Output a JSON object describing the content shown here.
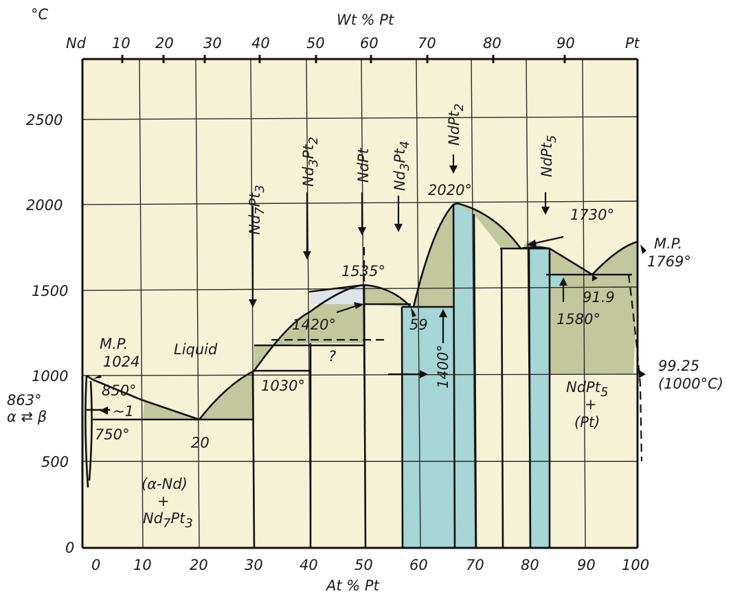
{
  "units": {
    "temperature": "°C",
    "top_axis": "Wt % Pt",
    "bottom_axis": "At % Pt"
  },
  "axes": {
    "left_element": "Nd",
    "right_element": "Pt",
    "bottom_ticks": [
      "0",
      "10",
      "20",
      "30",
      "40",
      "50",
      "60",
      "70",
      "80",
      "90",
      "100"
    ],
    "top_ticks": [
      "10",
      "20",
      "30",
      "40",
      "50",
      "60",
      "70",
      "80",
      "90"
    ],
    "y_ticks": [
      "0",
      "500",
      "1000",
      "1500",
      "2000",
      "2500"
    ]
  },
  "compounds": [
    {
      "base": "Nd",
      "s1": "7",
      "mid": "Pt",
      "s2": "3"
    },
    {
      "base": "Nd",
      "s1": "3",
      "mid": "Pt",
      "s2": "2"
    },
    {
      "base": "NdPt",
      "s1": "",
      "mid": "",
      "s2": ""
    },
    {
      "base": "Nd",
      "s1": "3",
      "mid": "Pt",
      "s2": "4"
    },
    {
      "base": "NdPt",
      "s1": "2",
      "mid": "",
      "s2": ""
    },
    {
      "base": "NdPt",
      "s1": "5",
      "mid": "",
      "s2": ""
    }
  ],
  "labels": {
    "mp_left": "M.P.",
    "mp_left_value": "1024",
    "t863": "863°",
    "alpha_beta": "α ⇄ β",
    "t850": "850°",
    "approx1": "~1",
    "t750": "750°",
    "liquid": "Liquid",
    "c20": "20",
    "t1030": "1030°",
    "t1420": "1420°",
    "question": "?",
    "t1535": "1535°",
    "c59": "59",
    "t1400": "1400°",
    "t2020": "2020°",
    "t1730": "1730°",
    "mp_right": "M.P.",
    "mp_right_value": "1769°",
    "c91_9": "91.9",
    "t1580": "1580°",
    "c99_25": "99.25",
    "t1000c": "(1000°C)",
    "ndpt5_region": "NdPt",
    "ndpt5_sub": "5",
    "plus": "+",
    "pt_region": "(Pt)",
    "alpha_nd": "(α-Nd)",
    "nd7pt3_base": "Nd",
    "nd7pt3_s1": "7",
    "nd7pt3_mid": "Pt",
    "nd7pt3_s2": "3"
  },
  "colors": {
    "background": "#f6f2d6",
    "two_phase": "#c3c79d",
    "compound": "#a6d6d6",
    "liquidus_gap": "#dfe3ea"
  }
}
